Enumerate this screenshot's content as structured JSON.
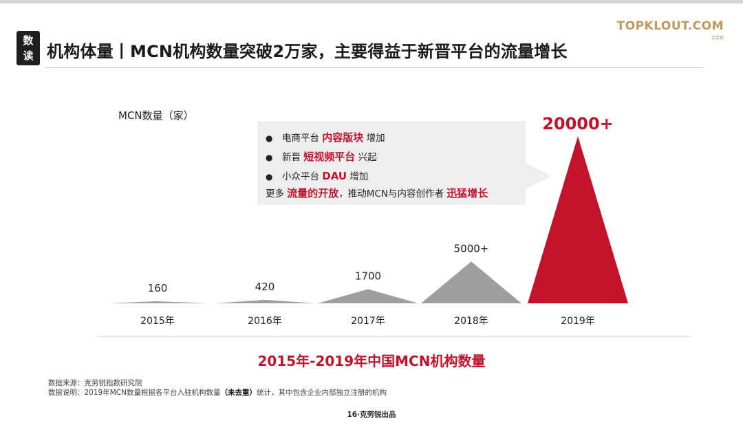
{
  "header": {
    "badge": [
      "数",
      "读"
    ],
    "title": "机构体量丨MCN机构数量突破2万家，主要得益于新晋平台的流量增长",
    "logo": "TOPKLOUT.COM",
    "logo_tagline": "克劳锐"
  },
  "callout": {
    "items": [
      {
        "prefix": "电商平台 ",
        "highlight": "内容版块",
        "suffix": " 增加"
      },
      {
        "prefix": "新晋 ",
        "highlight": "短视频平台",
        "suffix": " 兴起"
      },
      {
        "prefix": "小众平台 ",
        "highlight": "DAU",
        "suffix": " 增加"
      }
    ],
    "summary_prefix": "更多 ",
    "summary_highlight1": "流量的开放",
    "summary_middle": "，推动MCN与内容创作者 ",
    "summary_highlight2": "迅猛增长"
  },
  "chart_data": {
    "type": "bar",
    "title": "2015年-2019年中国MCN机构数量",
    "ylabel": "MCN数量（家）",
    "categories": [
      "2015年",
      "2016年",
      "2017年",
      "2018年",
      "2019年"
    ],
    "values": [
      160,
      420,
      1700,
      5000,
      20000
    ],
    "data_labels": [
      "160",
      "420",
      "1700",
      "5000+",
      "20000+"
    ],
    "colors": [
      "#9e9e9e",
      "#9e9e9e",
      "#9e9e9e",
      "#9e9e9e",
      "#c2132c"
    ]
  },
  "source": {
    "line1": "数据来源：克劳锐指数研究院",
    "line2_prefix": "数据说明：2019年MCN数量根据各平台入驻机构数量",
    "line2_bold": "（未去重）",
    "line2_suffix": "统计，其中包含企业内部独立注册的机构"
  },
  "footer": "16·克劳锐出品"
}
